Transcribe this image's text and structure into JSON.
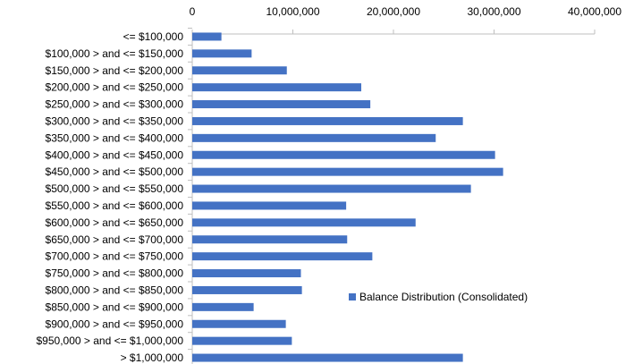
{
  "chart_data": {
    "type": "bar",
    "orientation": "horizontal",
    "x_axis_position": "top",
    "categories": [
      "<= $100,000",
      "$100,000 > and <= $150,000",
      "$150,000 > and <= $200,000",
      "$200,000 > and <= $250,000",
      "$250,000 > and <= $300,000",
      "$300,000 > and <= $350,000",
      "$350,000 > and <= $400,000",
      "$400,000 > and <= $450,000",
      "$450,000 > and <= $500,000",
      "$500,000 > and <= $550,000",
      "$550,000 > and <= $600,000",
      "$600,000 > and <= $650,000",
      "$650,000 > and <= $700,000",
      "$700,000 > and <= $750,000",
      "$750,000 > and <= $800,000",
      "$800,000 > and <= $850,000",
      "$850,000 > and <= $900,000",
      "$900,000 > and <= $950,000",
      "$950,000 > and <= $1,000,000",
      "> $1,000,000"
    ],
    "series": [
      {
        "name": "Balance Distribution (Consolidated)",
        "color": "#4472C4",
        "values": [
          2900000,
          5900000,
          9400000,
          16800000,
          17700000,
          26900000,
          24200000,
          30100000,
          30900000,
          27700000,
          15300000,
          22200000,
          15400000,
          17900000,
          10800000,
          10900000,
          6100000,
          9300000,
          9900000,
          26900000
        ]
      }
    ],
    "xlim": [
      0,
      40000000
    ],
    "x_ticks": [
      0,
      10000000,
      20000000,
      30000000,
      40000000
    ],
    "x_tick_labels": [
      "0",
      "10,000,000",
      "20,000,000",
      "30,000,000",
      "40,000,000"
    ],
    "grid": false,
    "legend_placement": "right-center"
  }
}
